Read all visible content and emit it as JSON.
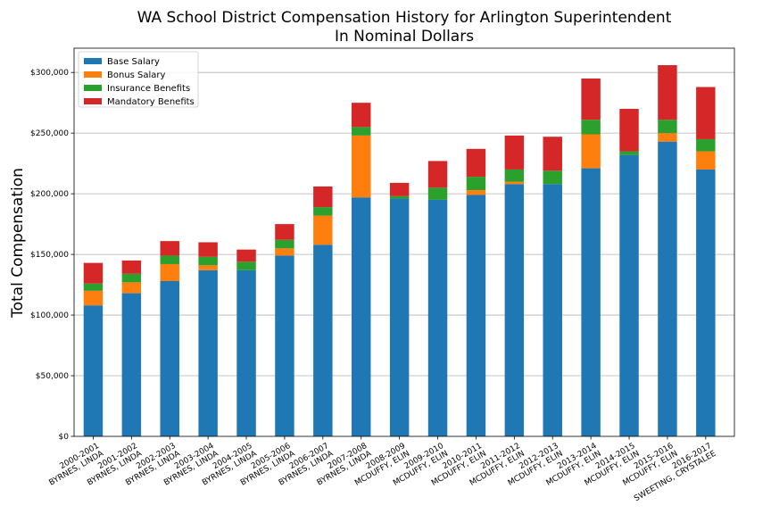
{
  "chart_data": {
    "type": "bar",
    "stacked": true,
    "title": [
      "WA School District Compensation History for Arlington Superintendent",
      "In Nominal Dollars"
    ],
    "xlabel": "",
    "ylabel": "Total Compensation",
    "ylim": [
      0,
      320000
    ],
    "yticks": [
      0,
      50000,
      100000,
      150000,
      200000,
      250000,
      300000
    ],
    "ytick_labels": [
      "$0",
      "$50,000",
      "$100,000",
      "$150,000",
      "$200,000",
      "$250,000",
      "$300,000"
    ],
    "grid": "horizontal",
    "legend_position": "top-left",
    "categories": [
      [
        "2000-2001",
        "BYRNES, LINDA"
      ],
      [
        "2001-2002",
        "BYRNES, LINDA"
      ],
      [
        "2002-2003",
        "BYRNES, LINDA"
      ],
      [
        "2003-2004",
        "BYRNES, LINDA"
      ],
      [
        "2004-2005",
        "BYRNES, LINDA"
      ],
      [
        "2005-2006",
        "BYRNES, LINDA"
      ],
      [
        "2006-2007",
        "BYRNES, LINDA"
      ],
      [
        "2007-2008",
        "BYRNES, LINDA"
      ],
      [
        "2008-2009",
        "MCDUFFY, ELIN"
      ],
      [
        "2009-2010",
        "MCDUFFY, ELIN"
      ],
      [
        "2010-2011",
        "MCDUFFY, ELIN"
      ],
      [
        "2011-2012",
        "MCDUFFY, ELIN"
      ],
      [
        "2012-2013",
        "MCDUFFY, ELIN"
      ],
      [
        "2013-2014",
        "MCDUFFY, ELIN"
      ],
      [
        "2014-2015",
        "MCDUFFY, ELIN"
      ],
      [
        "2015-2016",
        "MCDUFFY, ELIN"
      ],
      [
        "2016-2017",
        "SWEETING, CRYSTALEE"
      ]
    ],
    "series": [
      {
        "name": "Base Salary",
        "color": "#1f77b4",
        "values": [
          108000,
          118000,
          128000,
          137000,
          137000,
          149000,
          158000,
          197000,
          196000,
          195000,
          199000,
          208000,
          208000,
          221000,
          232000,
          243000,
          220000
        ]
      },
      {
        "name": "Bonus Salary",
        "color": "#ff7f0e",
        "values": [
          12000,
          9000,
          14000,
          4000,
          0,
          6000,
          24000,
          51000,
          0,
          0,
          4000,
          2000,
          0,
          28000,
          0,
          7000,
          15000
        ]
      },
      {
        "name": "Insurance Benefits",
        "color": "#2ca02c",
        "values": [
          6000,
          7000,
          7000,
          7000,
          7000,
          7000,
          7000,
          7000,
          2000,
          10000,
          11000,
          10000,
          11000,
          12000,
          3000,
          11000,
          10000
        ]
      },
      {
        "name": "Mandatory Benefits",
        "color": "#d62728",
        "values": [
          17000,
          11000,
          12000,
          12000,
          10000,
          13000,
          17000,
          20000,
          11000,
          22000,
          23000,
          28000,
          28000,
          34000,
          35000,
          45000,
          43000
        ]
      }
    ]
  }
}
